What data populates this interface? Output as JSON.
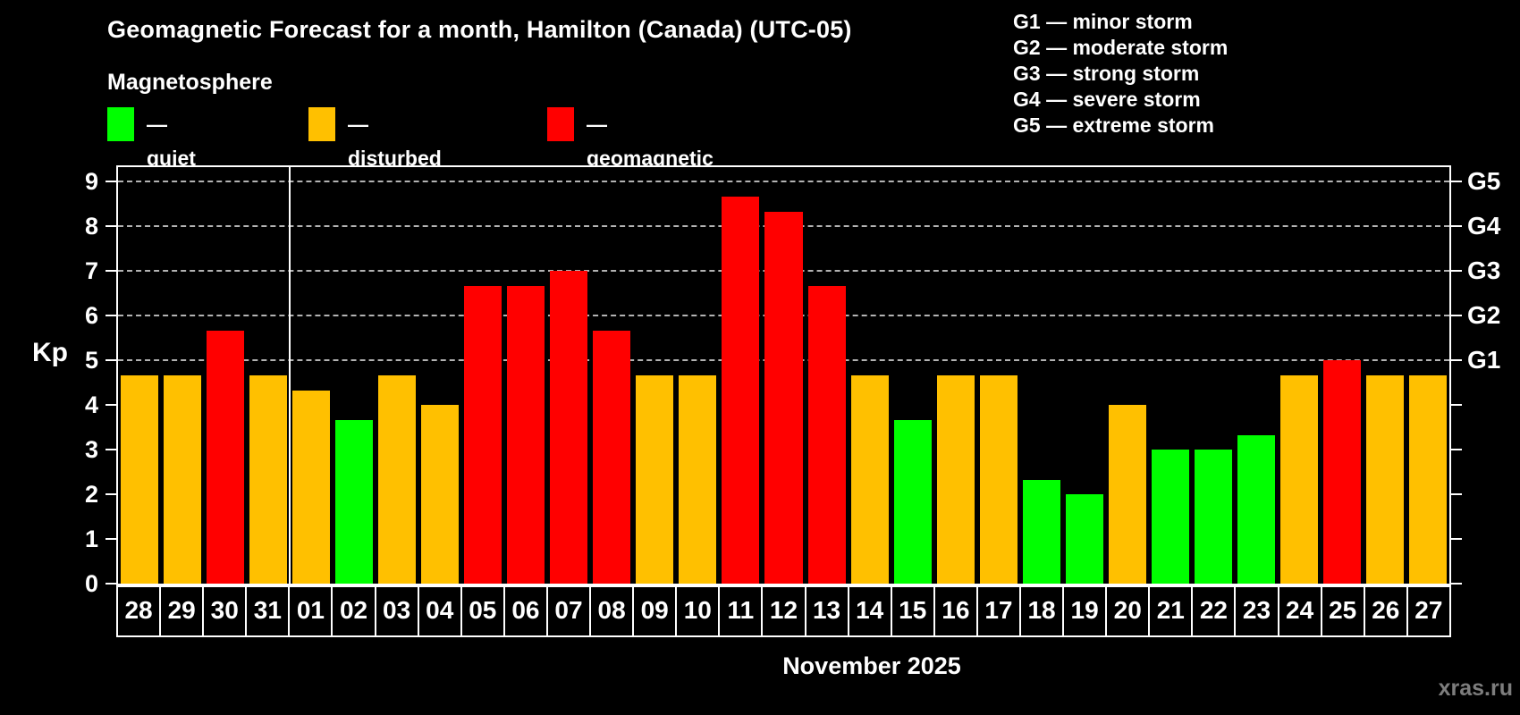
{
  "header": {
    "title": "Geomagnetic Forecast for a month, Hamilton (Canada) (UTC-05)",
    "subtitle": "Magnetosphere",
    "legend": [
      {
        "state": "quiet",
        "label": "— quiet"
      },
      {
        "state": "disturbed",
        "label": "— disturbed"
      },
      {
        "state": "storm",
        "label": "— geomagnetic storm"
      }
    ]
  },
  "storm_scale_legend": [
    "G1 — minor storm",
    "G2 — moderate storm",
    "G3 — strong storm",
    "G4 — severe storm",
    "G5 — extreme storm"
  ],
  "chart_data": {
    "type": "bar",
    "title": "Geomagnetic Forecast for a month, Hamilton (Canada) (UTC-05)",
    "ylabel": "Kp",
    "xlabel": "November 2025",
    "ylim": [
      0,
      9.34
    ],
    "grid": "dashed horizontal at Kp 5-9 only",
    "legend_position": "top-left and top-right",
    "yticks": [
      0,
      1,
      2,
      3,
      4,
      5,
      6,
      7,
      8,
      9
    ],
    "right_axis_labels": [
      {
        "label": "G1",
        "kp": 5
      },
      {
        "label": "G2",
        "kp": 6
      },
      {
        "label": "G3",
        "kp": 7
      },
      {
        "label": "G4",
        "kp": 8
      },
      {
        "label": "G5",
        "kp": 9
      }
    ],
    "month_separator_after_index": 3,
    "categories": [
      "28",
      "29",
      "30",
      "31",
      "01",
      "02",
      "03",
      "04",
      "05",
      "06",
      "07",
      "08",
      "09",
      "10",
      "11",
      "12",
      "13",
      "14",
      "15",
      "16",
      "17",
      "18",
      "19",
      "20",
      "21",
      "22",
      "23",
      "24",
      "25",
      "26",
      "27"
    ],
    "values": [
      4.67,
      4.67,
      5.67,
      4.67,
      4.33,
      3.67,
      4.67,
      4.0,
      6.67,
      6.67,
      7.0,
      5.67,
      4.67,
      4.67,
      8.67,
      8.33,
      6.67,
      4.67,
      3.67,
      4.67,
      4.67,
      2.33,
      2.0,
      4.0,
      3.0,
      3.0,
      3.33,
      4.67,
      5.0,
      4.67,
      4.67
    ],
    "states": [
      "disturbed",
      "disturbed",
      "storm",
      "disturbed",
      "disturbed",
      "quiet",
      "disturbed",
      "disturbed",
      "storm",
      "storm",
      "storm",
      "storm",
      "disturbed",
      "disturbed",
      "storm",
      "storm",
      "storm",
      "disturbed",
      "quiet",
      "disturbed",
      "disturbed",
      "quiet",
      "quiet",
      "disturbed",
      "quiet",
      "quiet",
      "quiet",
      "disturbed",
      "storm",
      "disturbed",
      "disturbed"
    ],
    "colors": {
      "quiet": "#00ff00",
      "disturbed": "#ffc000",
      "storm": "#ff0000"
    }
  },
  "footer": {
    "xaxis_title": "November 2025",
    "watermark": "xras.ru"
  }
}
